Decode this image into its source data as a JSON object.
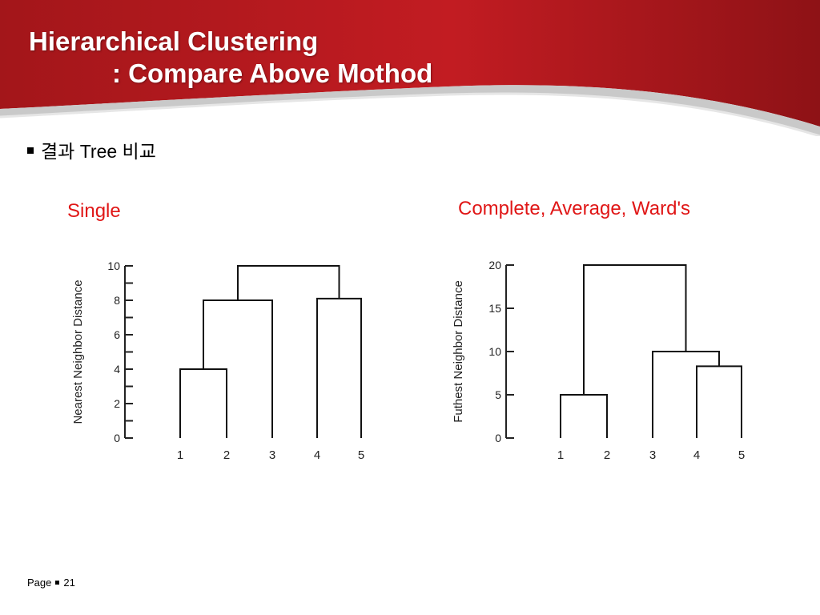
{
  "colors": {
    "banner_red": "#b01a1e",
    "label_red": "#e01616"
  },
  "slide": {
    "title_line1": "Hierarchical Clustering",
    "title_line2": ": Compare Above Mothod",
    "bullet_text": "결과 Tree 비교",
    "footer_page_label": "Page",
    "footer_page_number": "21"
  },
  "chart_data": [
    {
      "type": "dendrogram",
      "title": "Single",
      "ylabel": "Nearest Neighbor Distance",
      "ylim": [
        0,
        10
      ],
      "y_ticks": [
        0,
        2,
        4,
        6,
        8,
        10
      ],
      "leaves": [
        "1",
        "2",
        "3",
        "4",
        "5"
      ],
      "merges": [
        {
          "left": [
            "1"
          ],
          "right": [
            "2"
          ],
          "height": 4
        },
        {
          "left": [
            "1",
            "2"
          ],
          "right": [
            "3"
          ],
          "height": 8
        },
        {
          "left": [
            "4"
          ],
          "right": [
            "5"
          ],
          "height": 8.1
        },
        {
          "left": [
            "1",
            "2",
            "3"
          ],
          "right": [
            "4",
            "5"
          ],
          "height": 10
        }
      ]
    },
    {
      "type": "dendrogram",
      "title": "Complete, Average, Ward's",
      "ylabel": "Futhest Neighbor Distance",
      "ylim": [
        0,
        20
      ],
      "y_ticks": [
        0,
        5,
        10,
        15,
        20
      ],
      "leaves": [
        "1",
        "2",
        "3",
        "4",
        "5"
      ],
      "merges": [
        {
          "left": [
            "1"
          ],
          "right": [
            "2"
          ],
          "height": 5
        },
        {
          "left": [
            "4"
          ],
          "right": [
            "5"
          ],
          "height": 8.3
        },
        {
          "left": [
            "3"
          ],
          "right": [
            "4",
            "5"
          ],
          "height": 10
        },
        {
          "left": [
            "1",
            "2"
          ],
          "right": [
            "3",
            "4",
            "5"
          ],
          "height": 20
        }
      ]
    }
  ]
}
